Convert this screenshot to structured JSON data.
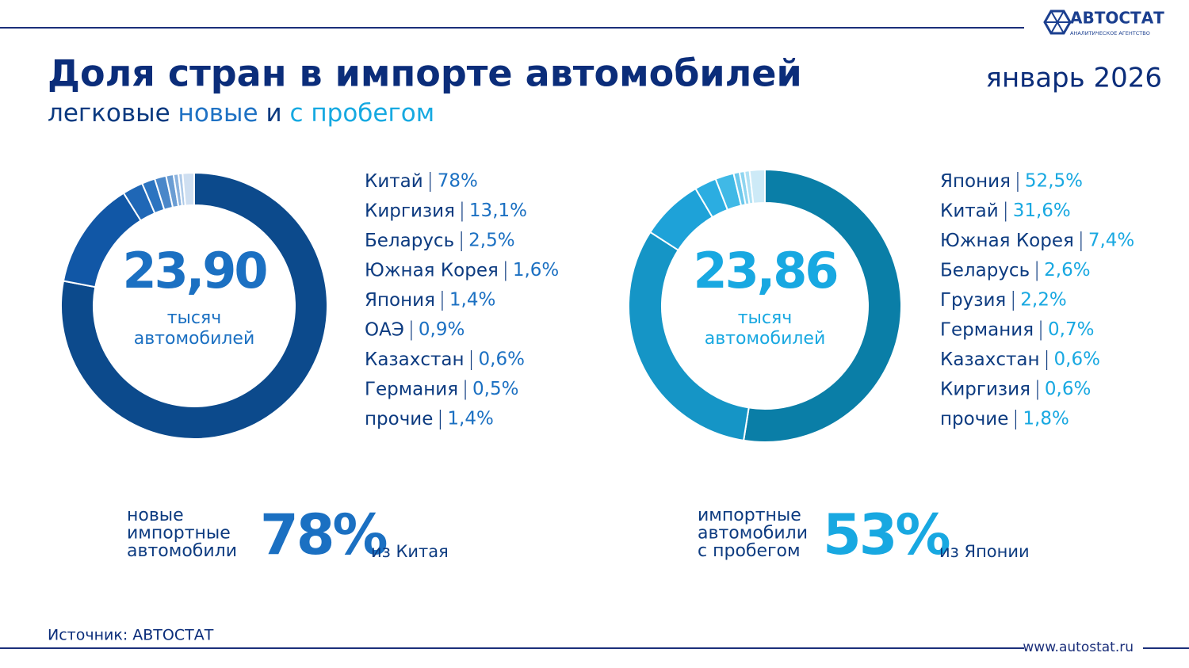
{
  "header": {
    "title": "Доля стран в импорте автомобилей",
    "subtitle_parts": [
      "легковые",
      "новые",
      "и",
      "с пробегом"
    ],
    "date": "январь 2026"
  },
  "logo": {
    "name": "АВТОСТАТ",
    "tagline": "АНАЛИТИЧЕСКОЕ АГЕНТСТВО"
  },
  "chart_data": [
    {
      "type": "pie",
      "center_value": "23,90",
      "center_caption": [
        "тысяч",
        "автомобилей"
      ],
      "categories": [
        "Китай",
        "Киргизия",
        "Беларусь",
        "Южная Корея",
        "Япония",
        "ОАЭ",
        "Казахстан",
        "Германия",
        "прочие"
      ],
      "values": [
        78,
        13.1,
        2.5,
        1.6,
        1.4,
        0.9,
        0.6,
        0.5,
        1.4
      ],
      "value_labels": [
        "78%",
        "13,1%",
        "2,5%",
        "1,6%",
        "1,4%",
        "0,9%",
        "0,6%",
        "0,5%",
        "1,4%"
      ],
      "colors": [
        "#0c4a8c",
        "#1157a6",
        "#1f67b6",
        "#2c74c0",
        "#4a87c9",
        "#6b9dd3",
        "#8cb3de",
        "#adc9e8",
        "#cfdff1"
      ],
      "accent": "#1b70c2"
    },
    {
      "type": "pie",
      "center_value": "23,86",
      "center_caption": [
        "тысяч",
        "автомобилей"
      ],
      "categories": [
        "Япония",
        "Китай",
        "Южная Корея",
        "Беларусь",
        "Грузия",
        "Германия",
        "Казахстан",
        "Киргизия",
        "прочие"
      ],
      "values": [
        52.5,
        31.6,
        7.4,
        2.6,
        2.2,
        0.7,
        0.6,
        0.6,
        1.8
      ],
      "value_labels": [
        "52,5%",
        "31,6%",
        "7,4%",
        "2,6%",
        "2,2%",
        "0,7%",
        "0,6%",
        "0,6%",
        "1,8%"
      ],
      "colors": [
        "#0a7ea7",
        "#1595c6",
        "#1ea2d8",
        "#2badE1",
        "#40b9e6",
        "#6cc8ec",
        "#8fd5f0",
        "#b0e1f4",
        "#cdeaf7"
      ],
      "accent": "#18a8e1"
    }
  ],
  "callouts": [
    {
      "lines": [
        "новые",
        "импортные",
        "автомобили"
      ],
      "value": "78%",
      "suffix": "из Китая"
    },
    {
      "lines": [
        "импортные",
        "автомобили",
        "с пробегом"
      ],
      "value": "53%",
      "suffix": "из Японии"
    }
  ],
  "footer": {
    "source": "Источник: АВТОСТАТ",
    "url": "www.autostat.ru"
  }
}
